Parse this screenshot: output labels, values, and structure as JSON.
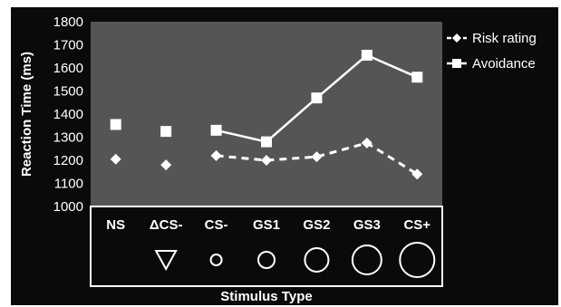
{
  "chart_data": {
    "type": "line",
    "title": "",
    "xlabel": "Stimulus Type",
    "ylabel": "Reaction Time (ms)",
    "ylim": [
      1000,
      1800
    ],
    "yticks": [
      "1000",
      "1100",
      "1200",
      "1300",
      "1400",
      "1500",
      "1600",
      "1700",
      "1800"
    ],
    "categories": [
      "NS",
      "ΔCS-",
      "CS-",
      "GS1",
      "GS2",
      "GS3",
      "CS+"
    ],
    "category_symbols": [
      "",
      "triangle-down",
      "circle-xs",
      "circle-s",
      "circle-m",
      "circle-l",
      "circle-xl"
    ],
    "grid": false,
    "legend": "right",
    "series": [
      {
        "name": "Risk rating",
        "marker": "diamond",
        "line_style": "dashed",
        "values": [
          1205,
          1180,
          1220,
          1200,
          1215,
          1275,
          1140
        ],
        "connected_from_index": 2
      },
      {
        "name": "Avoidance",
        "marker": "square",
        "line_style": "solid",
        "values": [
          1355,
          1325,
          1330,
          1280,
          1470,
          1655,
          1560
        ],
        "connected_from_index": 2
      }
    ],
    "colors": {
      "background": "#0a0a0a",
      "plot_area": "#555555",
      "foreground": "#ffffff"
    }
  }
}
